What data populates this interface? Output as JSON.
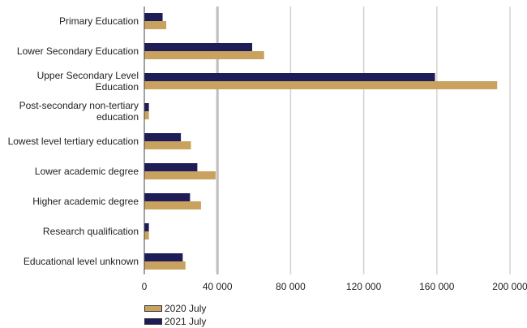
{
  "chart_data": {
    "type": "bar",
    "orientation": "horizontal",
    "categories": [
      [
        "Primary Education"
      ],
      [
        "Lower Secondary Education"
      ],
      [
        "Upper Secondary Level",
        "Education"
      ],
      [
        "Post-secondary non-tertiary",
        "education"
      ],
      [
        "Lowest level tertiary education"
      ],
      [
        "Lower academic degree"
      ],
      [
        "Higher academic degree"
      ],
      [
        "Research qualification"
      ],
      [
        "Educational level unknown"
      ]
    ],
    "series": [
      {
        "name": "2021 July",
        "color": "#1f1d57",
        "values": [
          10000,
          59000,
          159000,
          2500,
          20000,
          29000,
          25000,
          2500,
          21000
        ]
      },
      {
        "name": "2020 July",
        "color": "#c9a25f",
        "values": [
          12000,
          65500,
          193000,
          2500,
          25500,
          39000,
          31000,
          2500,
          22500
        ]
      }
    ],
    "xlim": [
      0,
      200000
    ],
    "xticks": [
      0,
      40000,
      80000,
      120000,
      160000,
      200000
    ],
    "xtick_labels": [
      "0",
      "40 000",
      "80 000",
      "120 000",
      "160 000",
      "200 000"
    ],
    "grid": true,
    "legend_position": "bottom-left",
    "legend_order": [
      "2020 July",
      "2021 July"
    ]
  }
}
